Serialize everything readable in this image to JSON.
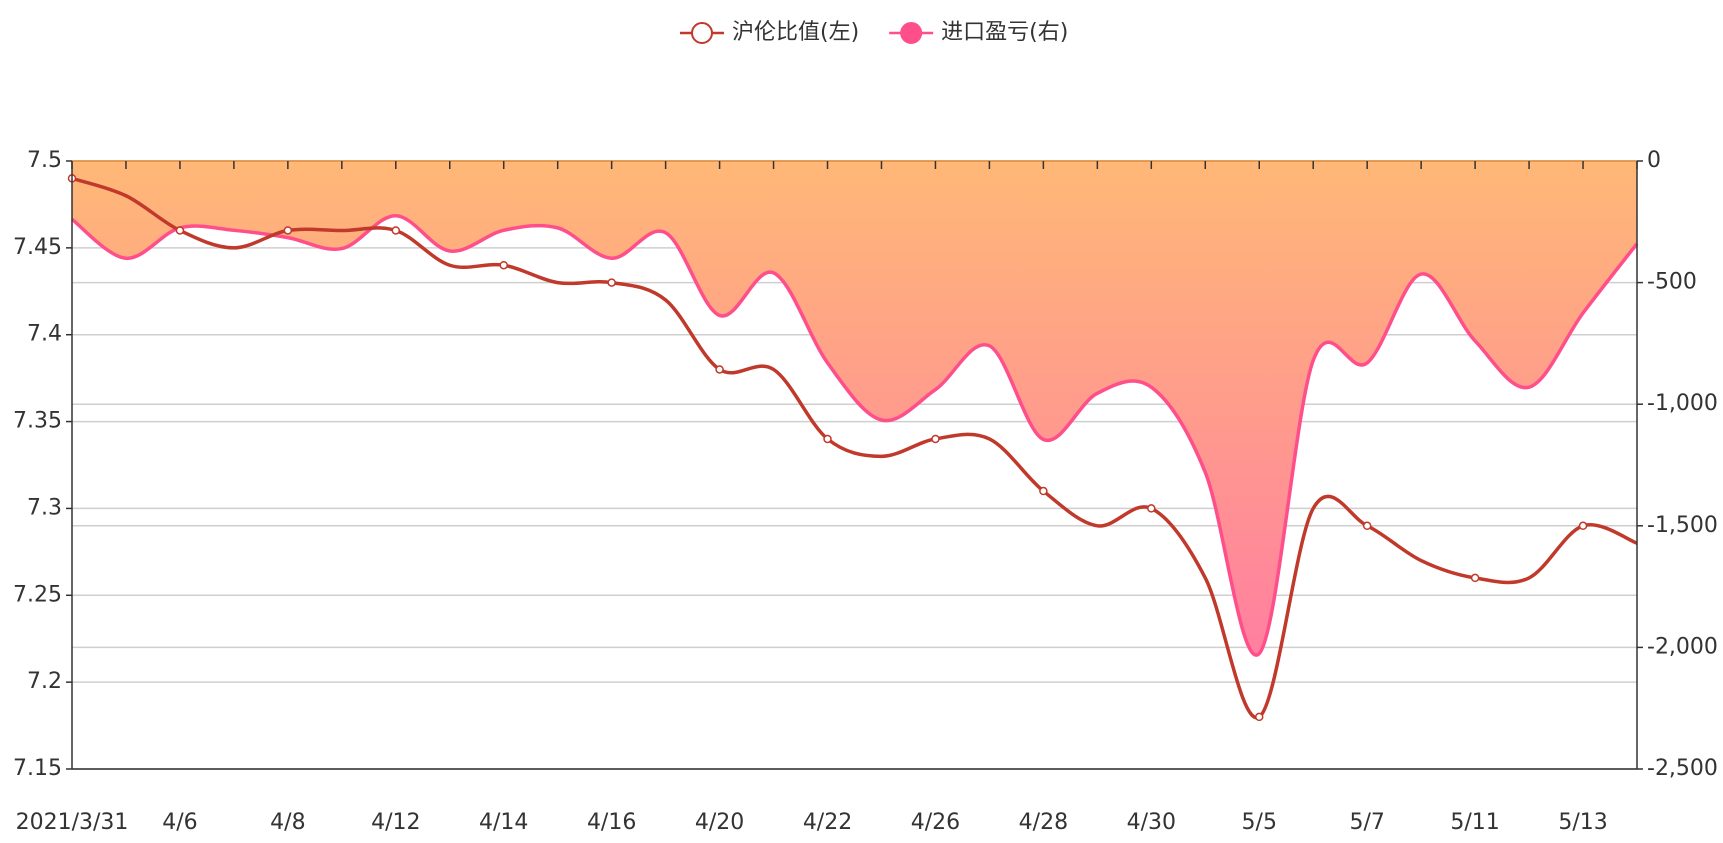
{
  "chart_data": {
    "type": "line",
    "categories": [
      "2021/3/31",
      null,
      "4/6",
      null,
      "4/8",
      null,
      "4/12",
      null,
      "4/14",
      null,
      "4/16",
      null,
      "4/20",
      null,
      "4/22",
      null,
      "4/26",
      null,
      "4/28",
      null,
      "4/30",
      null,
      "5/5",
      null,
      "5/7",
      null,
      "5/11",
      null,
      "5/13",
      null
    ],
    "series": [
      {
        "name": "沪伦比值(左)",
        "color": "#c0392b",
        "marker": "hollow",
        "values": [
          7.49,
          7.48,
          7.46,
          7.45,
          7.46,
          7.46,
          7.46,
          7.44,
          7.44,
          7.43,
          7.43,
          7.42,
          7.38,
          7.38,
          7.34,
          7.33,
          7.34,
          7.34,
          7.31,
          7.29,
          7.3,
          7.26,
          7.18,
          7.3,
          7.29,
          7.27,
          7.26,
          7.26,
          7.29,
          7.28
        ]
      },
      {
        "name": "进口盈亏(右)",
        "color": "#ff4f8b",
        "axis": "y2",
        "marker": "filled",
        "area_colors": [
          "#ffb877",
          "#ff7fa0"
        ],
        "values": [
          -240,
          -400,
          -275,
          -285,
          -315,
          -360,
          -225,
          -370,
          -285,
          -275,
          -400,
          -295,
          -635,
          -460,
          -830,
          -1065,
          -940,
          -760,
          -1145,
          -955,
          -930,
          -1280,
          -2025,
          -820,
          -830,
          -465,
          -740,
          -930,
          -625,
          -340
        ]
      }
    ],
    "ylim": [
      7.15,
      7.5
    ],
    "yticks": [
      7.15,
      7.2,
      7.25,
      7.3,
      7.35,
      7.4,
      7.45,
      7.5
    ],
    "y2lim": [
      -2500,
      0
    ],
    "y2ticks": [
      {
        "value": -2500,
        "label": "-2,500"
      },
      {
        "value": -2000,
        "label": "-2,000"
      },
      {
        "value": -1500,
        "label": "-1,500"
      },
      {
        "value": -1000,
        "label": "-1,000"
      },
      -500,
      0
    ],
    "grid": true,
    "legend": "top"
  }
}
